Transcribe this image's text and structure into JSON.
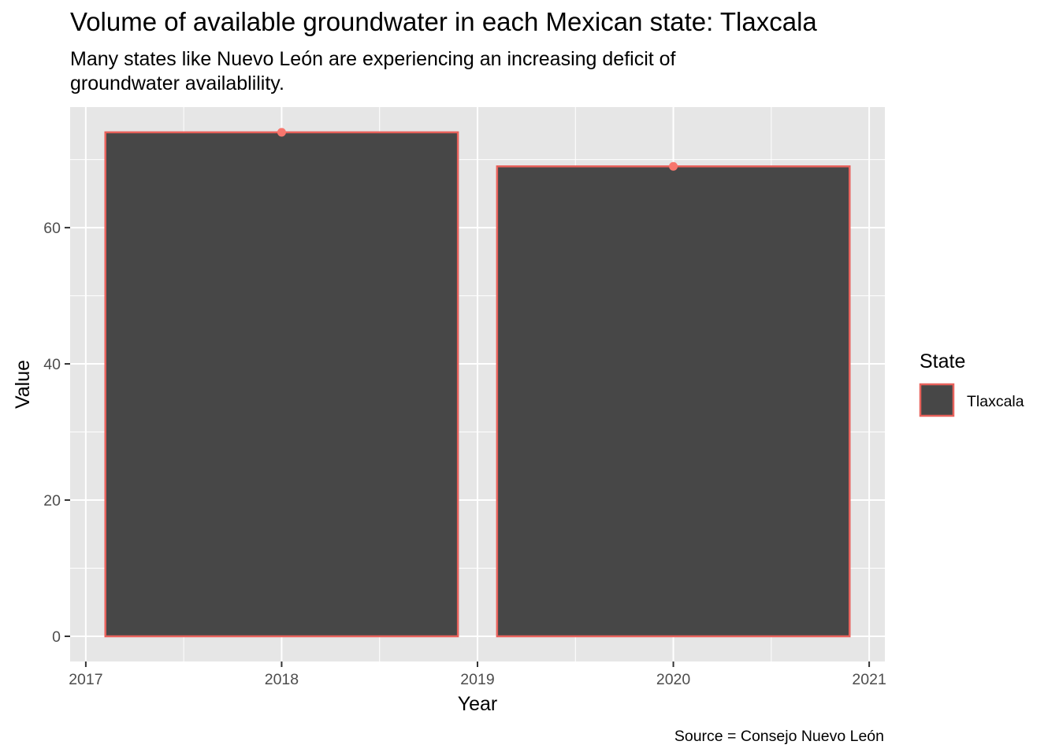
{
  "chart_data": {
    "type": "bar",
    "title": "Volume of available groundwater in each Mexican state: Tlaxcala",
    "subtitle_lines": [
      "Many states like Nuevo León are experiencing an increasing deficit of",
      "groundwater availablility."
    ],
    "xlabel": "Year",
    "ylabel": "Value",
    "caption": "Source = Consejo Nuevo León",
    "x": [
      2018,
      2020
    ],
    "series": [
      {
        "name": "Tlaxcala",
        "values": [
          74,
          69
        ]
      }
    ],
    "xlim": [
      2016.92,
      2021.08
    ],
    "ylim": [
      -3.7,
      77.7
    ],
    "bar_width": 1.8,
    "x_ticks": [
      2017,
      2018,
      2019,
      2020,
      2021
    ],
    "y_ticks": [
      0,
      20,
      40,
      60
    ],
    "legend": {
      "title": "State",
      "placement": "right"
    },
    "grid": true,
    "colors": {
      "panel_background": "#e6e6e6",
      "grid": "#ffffff",
      "bar_fill": "#474747",
      "bar_outline": "#e8625c",
      "point": "#f8766d"
    }
  }
}
